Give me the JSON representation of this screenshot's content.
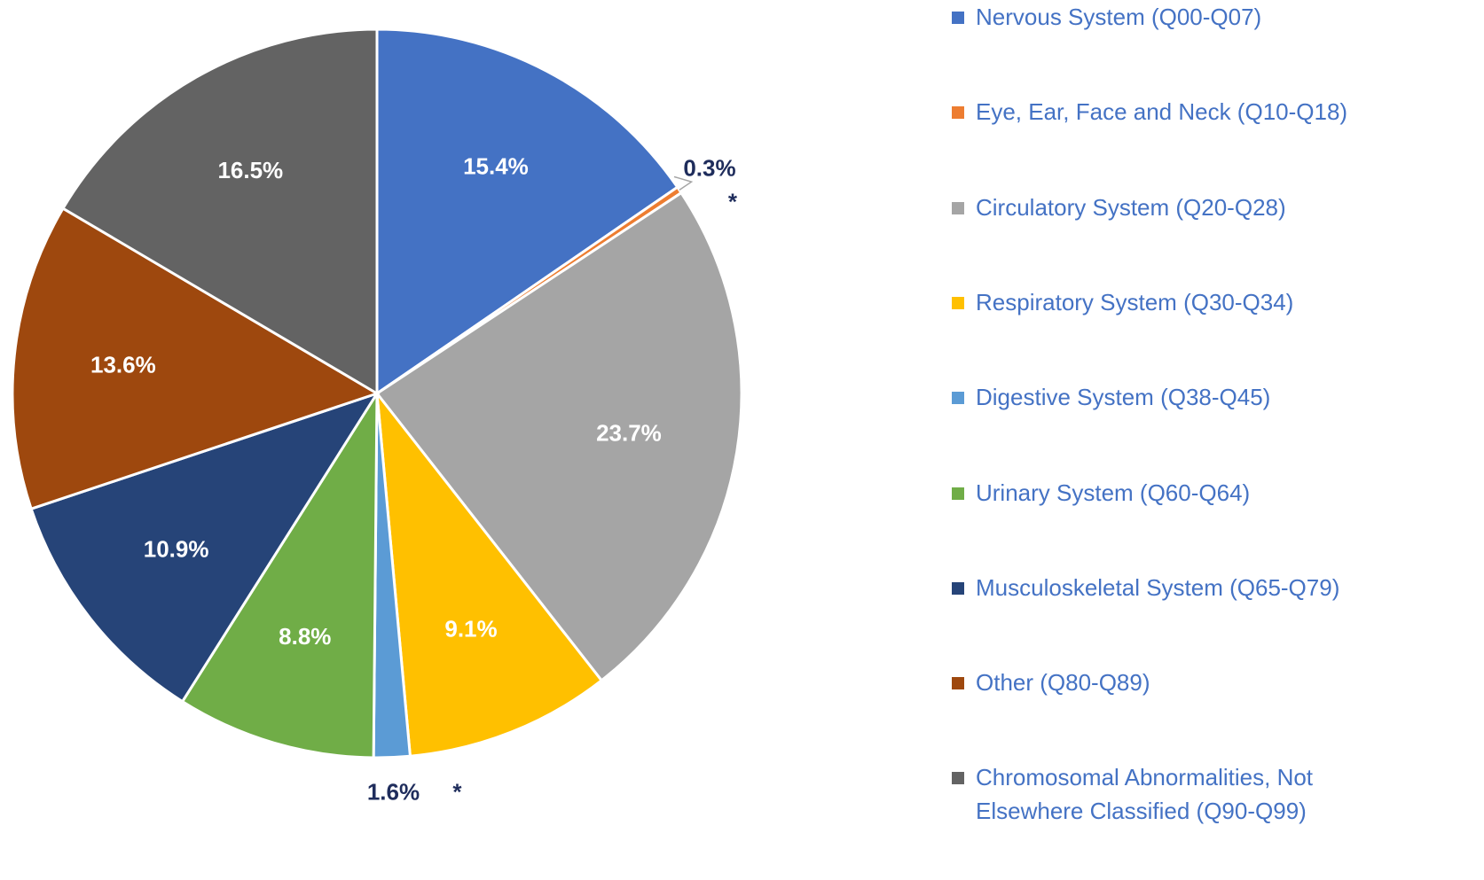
{
  "chart_data": {
    "type": "pie",
    "categories": [
      "Nervous System (Q00-Q07)",
      "Eye, Ear, Face and Neck (Q10-Q18)",
      "Circulatory System (Q20-Q28)",
      "Respiratory System (Q30-Q34)",
      "Digestive System (Q38-Q45)",
      "Urinary System (Q60-Q64)",
      "Musculoskeletal System (Q65-Q79)",
      "Other (Q80-Q89)",
      "Chromosomal Abnormalities, Not Elsewhere Classified (Q90-Q99)"
    ],
    "values": [
      15.4,
      0.3,
      23.7,
      9.1,
      1.6,
      8.8,
      10.9,
      13.6,
      16.5
    ],
    "value_labels": [
      "15.4%",
      "0.3%",
      "23.7%",
      "9.1%",
      "1.6%",
      "8.8%",
      "10.9%",
      "13.6%",
      "16.5%"
    ],
    "footnote_marks": [
      null,
      "*",
      null,
      null,
      "*",
      null,
      null,
      null,
      null
    ],
    "colors": [
      "#4472c4",
      "#ed7d31",
      "#a5a5a5",
      "#ffc000",
      "#5b9bd5",
      "#70ad47",
      "#264478",
      "#9e480e",
      "#636363"
    ],
    "legend": "right"
  }
}
